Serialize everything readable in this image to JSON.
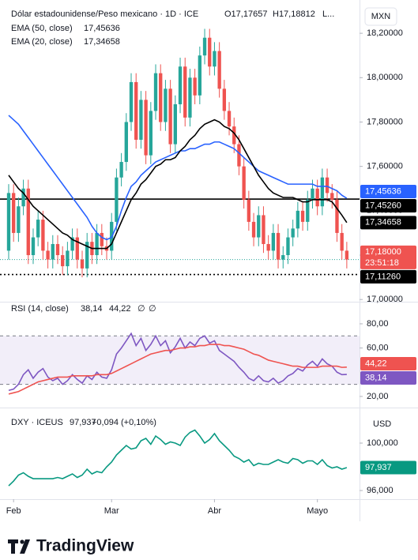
{
  "chart_data": [
    {
      "type": "candlestick",
      "title": "Dólar estadounidense/Peso mexicano · 1D · ICE",
      "ohlc_labels": [
        "O17,17657",
        "H17,18812",
        "L..."
      ],
      "axis_unit": "MXN",
      "up_color": "#26a69a",
      "down_color": "#ef5350",
      "open": [
        17.22,
        17.48,
        17.3,
        17.42,
        17.5,
        17.2,
        17.28,
        17.36,
        17.22,
        17.18,
        17.25,
        17.2,
        17.15,
        17.22,
        17.28,
        17.18,
        17.14,
        17.26,
        17.2,
        17.3,
        17.24,
        17.22,
        17.35,
        17.55,
        17.62,
        17.8,
        17.98,
        17.72,
        17.9,
        17.65,
        17.85,
        18.02,
        17.8,
        17.95,
        17.7,
        17.88,
        18.05,
        17.82,
        18.0,
        17.92,
        18.1,
        18.18,
        18.05,
        18.12,
        17.95,
        17.85,
        17.78,
        17.7,
        17.6,
        17.45,
        17.35,
        17.28,
        17.38,
        17.25,
        17.22,
        17.3,
        17.18,
        17.2,
        17.28,
        17.32,
        17.4,
        17.35,
        17.45,
        17.5,
        17.42,
        17.55,
        17.48,
        17.45,
        17.3,
        17.22
      ],
      "high": [
        17.52,
        17.52,
        17.46,
        17.54,
        17.54,
        17.32,
        17.4,
        17.4,
        17.26,
        17.29,
        17.29,
        17.24,
        17.26,
        17.32,
        17.32,
        17.22,
        17.3,
        17.3,
        17.34,
        17.34,
        17.28,
        17.39,
        17.59,
        17.66,
        17.84,
        18.02,
        18.02,
        17.94,
        17.94,
        17.89,
        18.06,
        18.06,
        17.99,
        17.99,
        17.92,
        18.09,
        18.09,
        18.04,
        18.04,
        18.14,
        18.22,
        18.22,
        18.16,
        18.16,
        17.99,
        17.89,
        17.82,
        17.74,
        17.64,
        17.49,
        17.39,
        17.42,
        17.42,
        17.29,
        17.34,
        17.34,
        17.24,
        17.32,
        17.36,
        17.44,
        17.44,
        17.49,
        17.54,
        17.54,
        17.59,
        17.59,
        17.52,
        17.49,
        17.34,
        17.26
      ],
      "low": [
        17.18,
        17.26,
        17.26,
        17.38,
        17.16,
        17.16,
        17.24,
        17.18,
        17.14,
        17.14,
        17.16,
        17.11,
        17.11,
        17.18,
        17.14,
        17.1,
        17.1,
        17.16,
        17.16,
        17.2,
        17.18,
        17.18,
        17.31,
        17.51,
        17.58,
        17.76,
        17.68,
        17.68,
        17.61,
        17.61,
        17.81,
        17.76,
        17.76,
        17.66,
        17.66,
        17.84,
        17.78,
        17.78,
        17.88,
        17.88,
        18.06,
        18.01,
        18.01,
        17.91,
        17.81,
        17.74,
        17.66,
        17.56,
        17.41,
        17.31,
        17.24,
        17.24,
        17.21,
        17.18,
        17.18,
        17.14,
        17.14,
        17.16,
        17.24,
        17.28,
        17.31,
        17.31,
        17.41,
        17.38,
        17.38,
        17.44,
        17.41,
        17.26,
        17.18,
        17.14
      ],
      "close": [
        17.48,
        17.3,
        17.42,
        17.5,
        17.2,
        17.28,
        17.36,
        17.22,
        17.18,
        17.25,
        17.2,
        17.15,
        17.22,
        17.28,
        17.18,
        17.14,
        17.26,
        17.2,
        17.3,
        17.24,
        17.22,
        17.35,
        17.55,
        17.62,
        17.8,
        17.98,
        17.72,
        17.9,
        17.65,
        17.85,
        18.02,
        17.8,
        17.95,
        17.7,
        17.88,
        18.05,
        17.82,
        18.0,
        17.92,
        18.1,
        18.18,
        18.05,
        18.12,
        17.95,
        17.85,
        17.78,
        17.7,
        17.6,
        17.45,
        17.35,
        17.28,
        17.38,
        17.25,
        17.22,
        17.3,
        17.18,
        17.2,
        17.28,
        17.32,
        17.4,
        17.35,
        17.45,
        17.5,
        17.42,
        17.55,
        17.48,
        17.45,
        17.3,
        17.22,
        17.18
      ],
      "current": {
        "label": "17,18000",
        "countdown": "23:51:18"
      },
      "series": [
        {
          "name": "EMA (50, close)",
          "last_label": "17,45636",
          "color": "#2962ff",
          "values": [
            17.83,
            17.81,
            17.79,
            17.76,
            17.73,
            17.7,
            17.67,
            17.64,
            17.61,
            17.58,
            17.55,
            17.52,
            17.49,
            17.46,
            17.43,
            17.4,
            17.37,
            17.33,
            17.3,
            17.28,
            17.27,
            17.28,
            17.33,
            17.4,
            17.46,
            17.51,
            17.53,
            17.56,
            17.58,
            17.6,
            17.62,
            17.63,
            17.64,
            17.65,
            17.66,
            17.67,
            17.67,
            17.68,
            17.68,
            17.69,
            17.7,
            17.7,
            17.71,
            17.71,
            17.7,
            17.69,
            17.68,
            17.66,
            17.64,
            17.62,
            17.6,
            17.58,
            17.57,
            17.56,
            17.55,
            17.54,
            17.53,
            17.52,
            17.52,
            17.52,
            17.52,
            17.52,
            17.52,
            17.51,
            17.51,
            17.51,
            17.5,
            17.49,
            17.47,
            17.45636
          ]
        },
        {
          "name": "EMA (20, close)",
          "last_label": "17,34658",
          "color": "#000000",
          "values": [
            17.56,
            17.53,
            17.5,
            17.48,
            17.45,
            17.42,
            17.4,
            17.38,
            17.36,
            17.34,
            17.32,
            17.3,
            17.29,
            17.27,
            17.26,
            17.25,
            17.24,
            17.23,
            17.23,
            17.23,
            17.23,
            17.25,
            17.3,
            17.35,
            17.4,
            17.45,
            17.48,
            17.52,
            17.54,
            17.57,
            17.6,
            17.61,
            17.63,
            17.63,
            17.64,
            17.67,
            17.69,
            17.72,
            17.74,
            17.77,
            17.79,
            17.8,
            17.81,
            17.8,
            17.78,
            17.77,
            17.75,
            17.72,
            17.68,
            17.64,
            17.6,
            17.56,
            17.53,
            17.5,
            17.48,
            17.47,
            17.46,
            17.46,
            17.46,
            17.45,
            17.44,
            17.44,
            17.45,
            17.45,
            17.45,
            17.45,
            17.44,
            17.41,
            17.38,
            17.34658
          ]
        }
      ],
      "levels": [
        {
          "value": 17.4526,
          "label": "17,45260",
          "style": "solid"
        },
        {
          "value": 17.1126,
          "label": "17,11260",
          "style": "dotted"
        }
      ],
      "ylim": [
        16.99,
        18.35
      ],
      "yticks": [
        {
          "value": 18.2,
          "label": "18,20000"
        },
        {
          "value": 18.0,
          "label": "18,00000"
        },
        {
          "value": 17.8,
          "label": "17,80000"
        },
        {
          "value": 17.6,
          "label": "17,60000"
        },
        {
          "value": 17.4,
          "label": "17,40000"
        },
        {
          "value": 17.2,
          "label": "17,20000"
        },
        {
          "value": 17.0,
          "label": "17,00000"
        }
      ],
      "xlim": [
        -1.77,
        71.6
      ],
      "xticks": [
        {
          "value": 1,
          "label": "Feb"
        },
        {
          "value": 21,
          "label": "Mar"
        },
        {
          "value": 42,
          "label": "Abr"
        },
        {
          "value": 63,
          "label": "Mayo"
        }
      ]
    },
    {
      "type": "line",
      "title": "RSI (14, close)",
      "legend_extras": [
        "∅",
        "∅"
      ],
      "band": {
        "values": [
          30,
          70
        ],
        "color": "#7e57c2"
      },
      "series": [
        {
          "last_label": "38,14",
          "color": "#7e57c2",
          "values": [
            25,
            26,
            30,
            38,
            42,
            35,
            40,
            43,
            36,
            33,
            35,
            30,
            33,
            38,
            34,
            31,
            37,
            34,
            40,
            36,
            35,
            42,
            55,
            60,
            66,
            72,
            62,
            68,
            58,
            63,
            70,
            62,
            66,
            56,
            61,
            68,
            60,
            65,
            62,
            68,
            70,
            64,
            66,
            58,
            55,
            52,
            49,
            44,
            40,
            35,
            33,
            37,
            33,
            32,
            35,
            31,
            33,
            37,
            39,
            43,
            41,
            46,
            49,
            45,
            51,
            47,
            45,
            40,
            38,
            38.14
          ]
        },
        {
          "last_label": "44,22",
          "color": "#ef5350",
          "values": [
            22,
            23,
            24,
            26,
            28,
            30,
            32,
            33,
            34,
            35,
            36,
            36,
            36,
            37,
            37,
            37,
            37,
            37,
            38,
            38,
            38,
            39,
            41,
            43,
            45,
            47,
            49,
            51,
            53,
            55,
            56,
            57,
            58,
            58,
            59,
            60,
            60,
            61,
            61,
            62,
            62,
            63,
            63,
            63,
            62,
            62,
            61,
            60,
            59,
            57,
            55,
            54,
            52,
            50,
            49,
            48,
            47,
            46,
            45,
            45,
            44,
            44,
            44,
            44,
            45,
            45,
            45,
            45,
            44,
            44.22
          ]
        }
      ],
      "ylim": [
        10.8,
        97.6
      ],
      "yticks": [
        {
          "value": 80,
          "label": "80,00"
        },
        {
          "value": 60,
          "label": "60,00"
        },
        {
          "value": 20,
          "label": "20,00"
        }
      ]
    },
    {
      "type": "line",
      "title": "DXY · ICEUS",
      "change_label": "+0,094 (+0,10%)",
      "axis_unit": "USD",
      "series": [
        {
          "last_label": "97,937",
          "color": "#089981",
          "values": [
            96.4,
            96.8,
            97.3,
            97.5,
            97.2,
            97.0,
            97.0,
            97.0,
            97.0,
            97.0,
            97.1,
            97.0,
            97.2,
            97.4,
            97.1,
            97.3,
            97.8,
            97.4,
            97.6,
            97.5,
            98.0,
            98.4,
            99.0,
            99.4,
            99.8,
            99.5,
            99.6,
            100.2,
            100.4,
            99.9,
            100.6,
            100.3,
            99.9,
            100.1,
            100.0,
            99.8,
            100.5,
            100.9,
            101.1,
            100.6,
            100.0,
            100.3,
            100.8,
            100.2,
            99.8,
            99.4,
            98.9,
            98.7,
            98.4,
            98.6,
            98.1,
            98.3,
            98.2,
            98.2,
            98.4,
            98.6,
            98.4,
            98.3,
            98.7,
            98.6,
            98.3,
            98.5,
            98.5,
            98.2,
            98.6,
            98.1,
            97.9,
            98.0,
            97.8,
            97.937
          ]
        }
      ],
      "ylim": [
        95.27,
        102.93
      ],
      "yticks": [
        {
          "value": 100,
          "label": "100,000"
        },
        {
          "value": 96,
          "label": "96,000"
        }
      ]
    }
  ]
}
